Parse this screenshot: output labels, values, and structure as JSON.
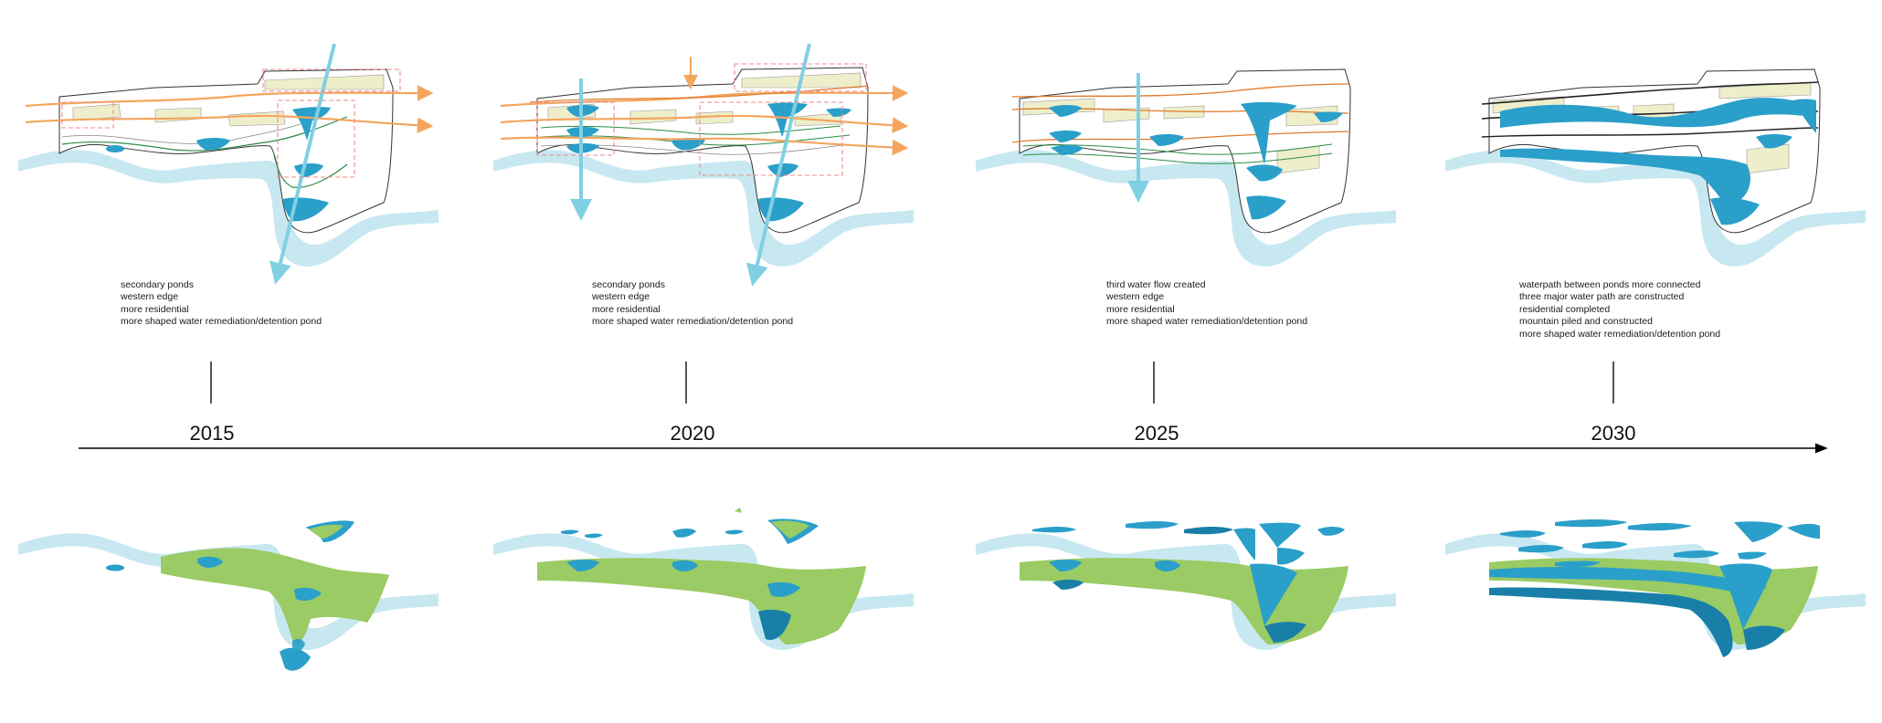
{
  "timeline": {
    "periods": [
      {
        "year": "2015",
        "notes": [
          "secondary ponds",
          "western edge",
          "more residential",
          "more shaped water remediation/detention pond"
        ]
      },
      {
        "year": "2020",
        "notes": [
          "secondary ponds",
          "western edge",
          "more residential",
          "more shaped water remediation/detention pond"
        ]
      },
      {
        "year": "2025",
        "notes": [
          "third water flow created",
          "western edge",
          "more residential",
          "more shaped water remediation/detention pond"
        ]
      },
      {
        "year": "2030",
        "notes": [
          "waterpath between ponds more connected",
          "three  major water path are constructed",
          "residential completed",
          "mountain piled and constructed",
          "more shaped water remediation/detention pond"
        ]
      }
    ]
  },
  "colors": {
    "river": "#c7e8f1",
    "pond": "#2a9fc9",
    "pond_dark": "#1a7fa8",
    "wetland": "#9acb64",
    "residential": "#eeeecb",
    "flow_arrow_blue": "#7fd0e2",
    "flow_arrow_orange": "#f4a55e",
    "focus_box": "#f08a8a",
    "axis": "#000000"
  }
}
